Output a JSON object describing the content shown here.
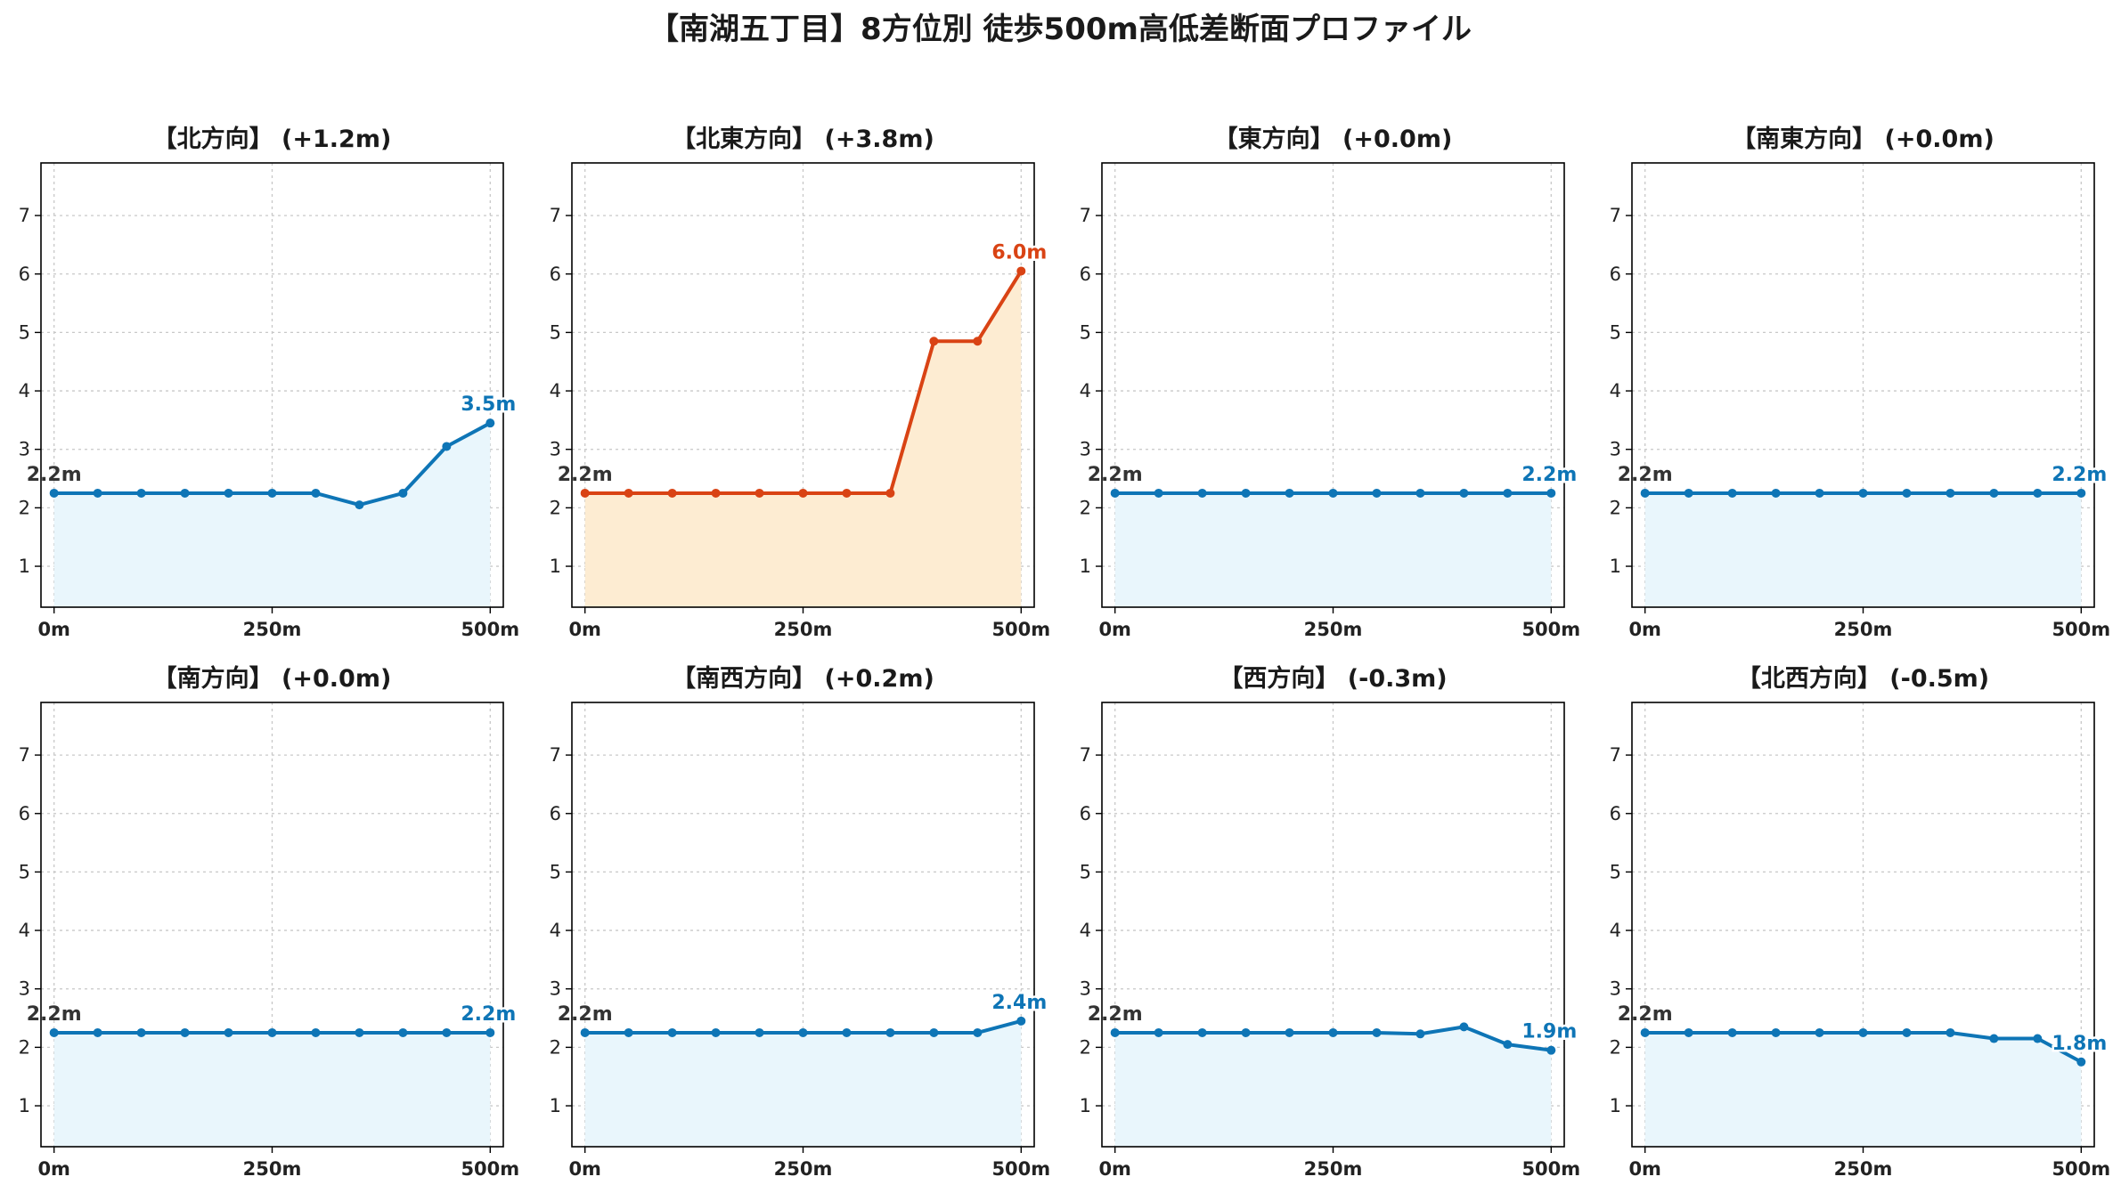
{
  "title": "【南湖五丁目】8方位別 徒歩500m高低差断面プロファイル",
  "colors": {
    "flat_line": "#0e75b6",
    "flat_fill": "#e9f6fc",
    "up_line": "#d94314",
    "up_fill": "#fdecd2",
    "start_label": "#333333"
  },
  "chart_data": [
    {
      "type": "area",
      "title": "【北方向】 (+1.2m)",
      "highlight": false,
      "x": [
        0,
        50,
        100,
        150,
        200,
        250,
        300,
        350,
        400,
        450,
        500
      ],
      "y": [
        2.25,
        2.25,
        2.25,
        2.25,
        2.25,
        2.25,
        2.25,
        2.05,
        2.25,
        3.05,
        3.45
      ],
      "start_label": "2.2m",
      "end_label": "3.5m",
      "xticks": [
        "0m",
        "250m",
        "500m"
      ],
      "yticks": [
        "1",
        "2",
        "3",
        "4",
        "5",
        "6",
        "7"
      ],
      "ylim": [
        0.3,
        7.9
      ],
      "grid": true
    },
    {
      "type": "area",
      "title": "【北東方向】 (+3.8m)",
      "highlight": true,
      "x": [
        0,
        50,
        100,
        150,
        200,
        250,
        300,
        350,
        400,
        450,
        500
      ],
      "y": [
        2.25,
        2.25,
        2.25,
        2.25,
        2.25,
        2.25,
        2.25,
        2.25,
        4.85,
        4.85,
        6.05
      ],
      "start_label": "2.2m",
      "end_label": "6.0m",
      "xticks": [
        "0m",
        "250m",
        "500m"
      ],
      "yticks": [
        "1",
        "2",
        "3",
        "4",
        "5",
        "6",
        "7"
      ],
      "ylim": [
        0.3,
        7.9
      ],
      "grid": true
    },
    {
      "type": "area",
      "title": "【東方向】 (+0.0m)",
      "highlight": false,
      "x": [
        0,
        50,
        100,
        150,
        200,
        250,
        300,
        350,
        400,
        450,
        500
      ],
      "y": [
        2.25,
        2.25,
        2.25,
        2.25,
        2.25,
        2.25,
        2.25,
        2.25,
        2.25,
        2.25,
        2.25
      ],
      "start_label": "2.2m",
      "end_label": "2.2m",
      "xticks": [
        "0m",
        "250m",
        "500m"
      ],
      "yticks": [
        "1",
        "2",
        "3",
        "4",
        "5",
        "6",
        "7"
      ],
      "ylim": [
        0.3,
        7.9
      ],
      "grid": true
    },
    {
      "type": "area",
      "title": "【南東方向】 (+0.0m)",
      "highlight": false,
      "x": [
        0,
        50,
        100,
        150,
        200,
        250,
        300,
        350,
        400,
        450,
        500
      ],
      "y": [
        2.25,
        2.25,
        2.25,
        2.25,
        2.25,
        2.25,
        2.25,
        2.25,
        2.25,
        2.25,
        2.25
      ],
      "start_label": "2.2m",
      "end_label": "2.2m",
      "xticks": [
        "0m",
        "250m",
        "500m"
      ],
      "yticks": [
        "1",
        "2",
        "3",
        "4",
        "5",
        "6",
        "7"
      ],
      "ylim": [
        0.3,
        7.9
      ],
      "grid": true
    },
    {
      "type": "area",
      "title": "【南方向】 (+0.0m)",
      "highlight": false,
      "x": [
        0,
        50,
        100,
        150,
        200,
        250,
        300,
        350,
        400,
        450,
        500
      ],
      "y": [
        2.25,
        2.25,
        2.25,
        2.25,
        2.25,
        2.25,
        2.25,
        2.25,
        2.25,
        2.25,
        2.25
      ],
      "start_label": "2.2m",
      "end_label": "2.2m",
      "xticks": [
        "0m",
        "250m",
        "500m"
      ],
      "yticks": [
        "1",
        "2",
        "3",
        "4",
        "5",
        "6",
        "7"
      ],
      "ylim": [
        0.3,
        7.9
      ],
      "grid": true
    },
    {
      "type": "area",
      "title": "【南西方向】 (+0.2m)",
      "highlight": false,
      "x": [
        0,
        50,
        100,
        150,
        200,
        250,
        300,
        350,
        400,
        450,
        500
      ],
      "y": [
        2.25,
        2.25,
        2.25,
        2.25,
        2.25,
        2.25,
        2.25,
        2.25,
        2.25,
        2.25,
        2.45
      ],
      "start_label": "2.2m",
      "end_label": "2.4m",
      "xticks": [
        "0m",
        "250m",
        "500m"
      ],
      "yticks": [
        "1",
        "2",
        "3",
        "4",
        "5",
        "6",
        "7"
      ],
      "ylim": [
        0.3,
        7.9
      ],
      "grid": true
    },
    {
      "type": "area",
      "title": "【西方向】 (-0.3m)",
      "highlight": false,
      "x": [
        0,
        50,
        100,
        150,
        200,
        250,
        300,
        350,
        400,
        450,
        500
      ],
      "y": [
        2.25,
        2.25,
        2.25,
        2.25,
        2.25,
        2.25,
        2.25,
        2.23,
        2.35,
        2.05,
        1.95
      ],
      "start_label": "2.2m",
      "end_label": "1.9m",
      "xticks": [
        "0m",
        "250m",
        "500m"
      ],
      "yticks": [
        "1",
        "2",
        "3",
        "4",
        "5",
        "6",
        "7"
      ],
      "ylim": [
        0.3,
        7.9
      ],
      "grid": true
    },
    {
      "type": "area",
      "title": "【北西方向】 (-0.5m)",
      "highlight": false,
      "x": [
        0,
        50,
        100,
        150,
        200,
        250,
        300,
        350,
        400,
        450,
        500
      ],
      "y": [
        2.25,
        2.25,
        2.25,
        2.25,
        2.25,
        2.25,
        2.25,
        2.25,
        2.15,
        2.15,
        1.75
      ],
      "start_label": "2.2m",
      "end_label": "1.8m",
      "xticks": [
        "0m",
        "250m",
        "500m"
      ],
      "yticks": [
        "1",
        "2",
        "3",
        "4",
        "5",
        "6",
        "7"
      ],
      "ylim": [
        0.3,
        7.9
      ],
      "grid": true
    }
  ]
}
